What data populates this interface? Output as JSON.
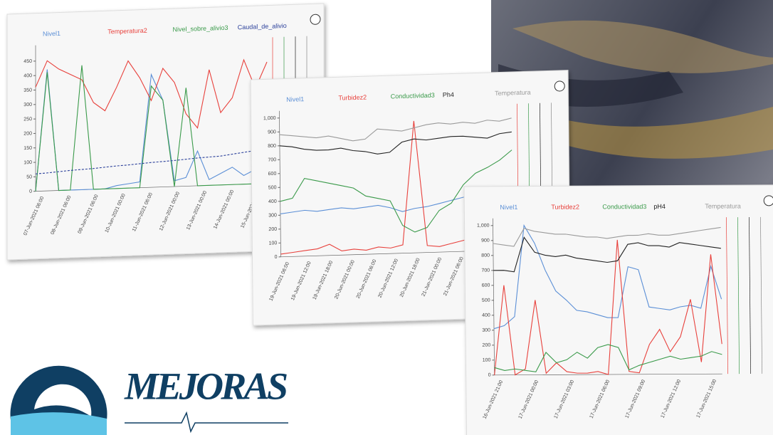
{
  "logo": {
    "name": "MEJORAS"
  },
  "panels": [
    {
      "type": "line",
      "ylim": [
        0,
        480
      ],
      "yticks": [
        0,
        50,
        100,
        150,
        200,
        250,
        300,
        350,
        400,
        450
      ],
      "xlabels": [
        "07-Jun-2021 06:00",
        "08-Jun-2021 06:00",
        "09-Jun-2021 06:00",
        "10-Jun-2021 00:00",
        "11-Jun-2021 06:00",
        "12-Jun-2021 00:00",
        "13-Jun-2021 00:00",
        "14-Jun-2021 00:00",
        "15-Jun-2021 00:00"
      ],
      "series": [
        {
          "name": "Nivel1",
          "color": "#5b8fd6",
          "values": [
            0,
            420,
            0,
            0,
            0,
            0,
            0,
            10,
            15,
            20,
            390,
            300,
            20,
            30,
            120,
            20,
            40,
            60,
            30,
            50,
            20
          ]
        },
        {
          "name": "Temperatura2",
          "color": "#e8413c",
          "values": [
            360,
            450,
            420,
            400,
            380,
            300,
            270,
            350,
            440,
            380,
            300,
            410,
            360,
            250,
            200,
            400,
            250,
            300,
            430,
            330,
            420
          ]
        },
        {
          "name": "Nivel_sobre_alivio3",
          "color": "#3a9a4a",
          "values": [
            0,
            410,
            0,
            0,
            430,
            0,
            0,
            0,
            0,
            0,
            350,
            300,
            0,
            340,
            0,
            0,
            0,
            0,
            0,
            0,
            0
          ]
        },
        {
          "name": "Caudal_de_alivio",
          "color": "#2a3f9a",
          "dashed": true,
          "values": [
            60,
            62,
            65,
            68,
            70,
            72,
            75,
            78,
            80,
            83,
            86,
            88,
            90,
            93,
            96,
            98,
            100,
            105,
            110,
            115,
            120
          ]
        }
      ]
    },
    {
      "type": "line",
      "ylim": [
        0,
        1000
      ],
      "yticks": [
        0,
        100,
        200,
        300,
        400,
        500,
        600,
        700,
        800,
        900,
        {
          "value": 1000,
          "label": "1,000"
        }
      ],
      "xlabels": [
        "19-Jun-2021 06:00",
        "19-Jun-2021 12:00",
        "19-Jun-2021 18:00",
        "20-Jun-2021 00:00",
        "20-Jun-2021 06:00",
        "20-Jun-2021 12:00",
        "20-Jun-2021 18:00",
        "21-Jun-2021 00:00",
        "21-Jun-2021 06:00",
        "21-Jun-2021 12:00",
        "21-Jun-2021 18:00"
      ],
      "series": [
        {
          "name": "Nivel1",
          "color": "#5b8fd6",
          "values": [
            310,
            320,
            330,
            320,
            330,
            340,
            330,
            340,
            350,
            330,
            300,
            320,
            330,
            350,
            370,
            390,
            400,
            410,
            420,
            420
          ]
        },
        {
          "name": "Turbidez2",
          "color": "#e8413c",
          "values": [
            20,
            30,
            40,
            50,
            80,
            30,
            40,
            30,
            50,
            40,
            60,
            950,
            50,
            40,
            60,
            80,
            100,
            120,
            150,
            160
          ]
        },
        {
          "name": "Conductividad3",
          "color": "#3a9a4a",
          "values": [
            400,
            420,
            560,
            540,
            520,
            500,
            480,
            420,
            400,
            380,
            200,
            150,
            180,
            300,
            350,
            480,
            560,
            600,
            650,
            720
          ]
        },
        {
          "name": "Ph4",
          "color": "#222222",
          "values": [
            800,
            790,
            770,
            760,
            760,
            770,
            750,
            740,
            720,
            730,
            800,
            820,
            810,
            820,
            830,
            830,
            820,
            810,
            840,
            850
          ]
        },
        {
          "name": "Temperatura",
          "color": "#9a9a9a",
          "values": [
            880,
            870,
            860,
            850,
            860,
            840,
            820,
            830,
            900,
            890,
            880,
            900,
            920,
            930,
            920,
            930,
            920,
            940,
            930,
            950
          ]
        }
      ]
    },
    {
      "type": "line",
      "ylim": [
        0,
        1000
      ],
      "yticks": [
        0,
        100,
        200,
        300,
        400,
        500,
        600,
        700,
        800,
        900,
        {
          "value": 1000,
          "label": "1,000"
        }
      ],
      "xlabels": [
        "16-Jun-2021 21:00",
        "17-Jun-2021 00:00",
        "17-Jun-2021 03:00",
        "17-Jun-2021 06:00",
        "17-Jun-2021 09:00",
        "17-Jun-2021 12:00",
        "17-Jun-2021 15:00"
      ],
      "series": [
        {
          "name": "Nivel1",
          "color": "#5b8fd6",
          "values": [
            310,
            330,
            390,
            1000,
            880,
            700,
            560,
            500,
            430,
            420,
            400,
            380,
            380,
            720,
            700,
            450,
            440,
            430,
            450,
            460,
            440,
            720,
            500
          ]
        },
        {
          "name": "Turbidez2",
          "color": "#e8413c",
          "values": [
            0,
            600,
            0,
            40,
            500,
            10,
            80,
            20,
            10,
            10,
            20,
            0,
            900,
            20,
            10,
            200,
            300,
            150,
            250,
            500,
            80,
            800,
            200
          ]
        },
        {
          "name": "Conductividad3",
          "color": "#3a9a4a",
          "values": [
            50,
            30,
            40,
            30,
            20,
            150,
            80,
            100,
            150,
            110,
            180,
            200,
            180,
            30,
            60,
            80,
            100,
            120,
            100,
            110,
            120,
            150,
            130
          ]
        },
        {
          "name": "pH4",
          "color": "#222222",
          "values": [
            700,
            700,
            690,
            920,
            820,
            800,
            790,
            800,
            780,
            770,
            760,
            750,
            760,
            870,
            880,
            860,
            860,
            850,
            880,
            870,
            860,
            850,
            840
          ]
        },
        {
          "name": "Temperatura",
          "color": "#9a9a9a",
          "values": [
            880,
            870,
            860,
            980,
            960,
            950,
            940,
            940,
            930,
            920,
            920,
            910,
            920,
            930,
            930,
            940,
            930,
            930,
            940,
            950,
            960,
            970,
            980
          ]
        }
      ]
    }
  ]
}
